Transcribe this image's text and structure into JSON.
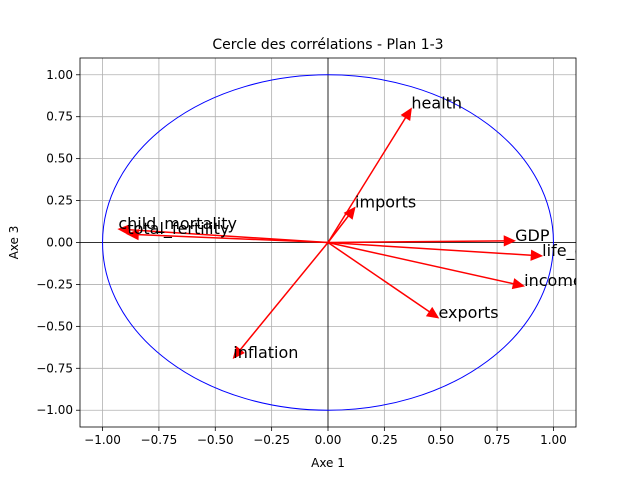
{
  "chart_data": {
    "type": "scatter",
    "title": "Cercle des corrélations - Plan 1-3",
    "xlabel": "Axe 1",
    "ylabel": "Axe 3",
    "xlim": [
      -1.1,
      1.1
    ],
    "ylim": [
      -1.1,
      1.1
    ],
    "grid": true,
    "x_ticks": [
      -1.0,
      -0.75,
      -0.5,
      -0.25,
      0.0,
      0.25,
      0.5,
      0.75,
      1.0
    ],
    "y_ticks": [
      -1.0,
      -0.75,
      -0.5,
      -0.25,
      0.0,
      0.25,
      0.5,
      0.75,
      1.0
    ],
    "x_tick_labels": [
      "−1.00",
      "−0.75",
      "−0.50",
      "−0.25",
      "0.00",
      "0.25",
      "0.50",
      "0.75",
      "1.00"
    ],
    "y_tick_labels": [
      "−1.00",
      "−0.75",
      "−0.50",
      "−0.25",
      "0.00",
      "0.25",
      "0.50",
      "0.75",
      "1.00"
    ],
    "unit_circle_radius": 1.0,
    "circle_color": "#0000ff",
    "arrow_color": "#ff0000",
    "vectors": [
      {
        "label": "child_mortality",
        "x": -0.93,
        "y": 0.08
      },
      {
        "label": "total_fertility",
        "x": -0.89,
        "y": 0.05
      },
      {
        "label": "health",
        "x": 0.37,
        "y": 0.8
      },
      {
        "label": "imports",
        "x": 0.12,
        "y": 0.21
      },
      {
        "label": "GDP",
        "x": 0.83,
        "y": 0.01
      },
      {
        "label": "life_expectation",
        "x": 0.95,
        "y": -0.08
      },
      {
        "label": "income",
        "x": 0.87,
        "y": -0.26
      },
      {
        "label": "exports",
        "x": 0.49,
        "y": -0.45
      },
      {
        "label": "inflation",
        "x": -0.42,
        "y": -0.69
      }
    ]
  }
}
